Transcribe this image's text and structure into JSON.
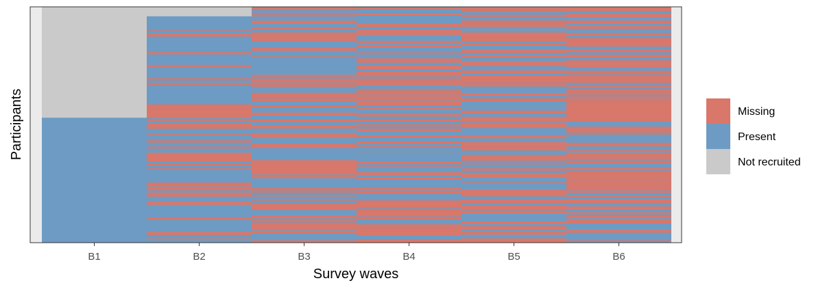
{
  "chart_data": {
    "type": "heatmap",
    "title": "",
    "xlabel": "Survey waves",
    "ylabel": "Participants",
    "categories": [
      "B1",
      "B2",
      "B3",
      "B4",
      "B5",
      "B6"
    ],
    "legend": {
      "placement": "right",
      "entries": [
        {
          "label": "Missing",
          "color": "#d9776a"
        },
        {
          "label": "Present",
          "color": "#6d9bc3"
        },
        {
          "label": "Not recruited",
          "color": "#cacaca"
        }
      ]
    },
    "colors": {
      "missing": "#d9776a",
      "present": "#6d9bc3",
      "not_recruited": "#cacaca",
      "panel_background": "#ebebeb"
    },
    "recruitment": {
      "B1": 0.53,
      "B2": 0.96,
      "B3": 1.0,
      "B4": 1.0,
      "B5": 1.0,
      "B6": 1.0
    },
    "approx_missing_fraction": {
      "B1": 0.0,
      "B2": 0.35,
      "B3": 0.45,
      "B4": 0.5,
      "B5": 0.58,
      "B6": 0.62
    },
    "grid": false
  }
}
